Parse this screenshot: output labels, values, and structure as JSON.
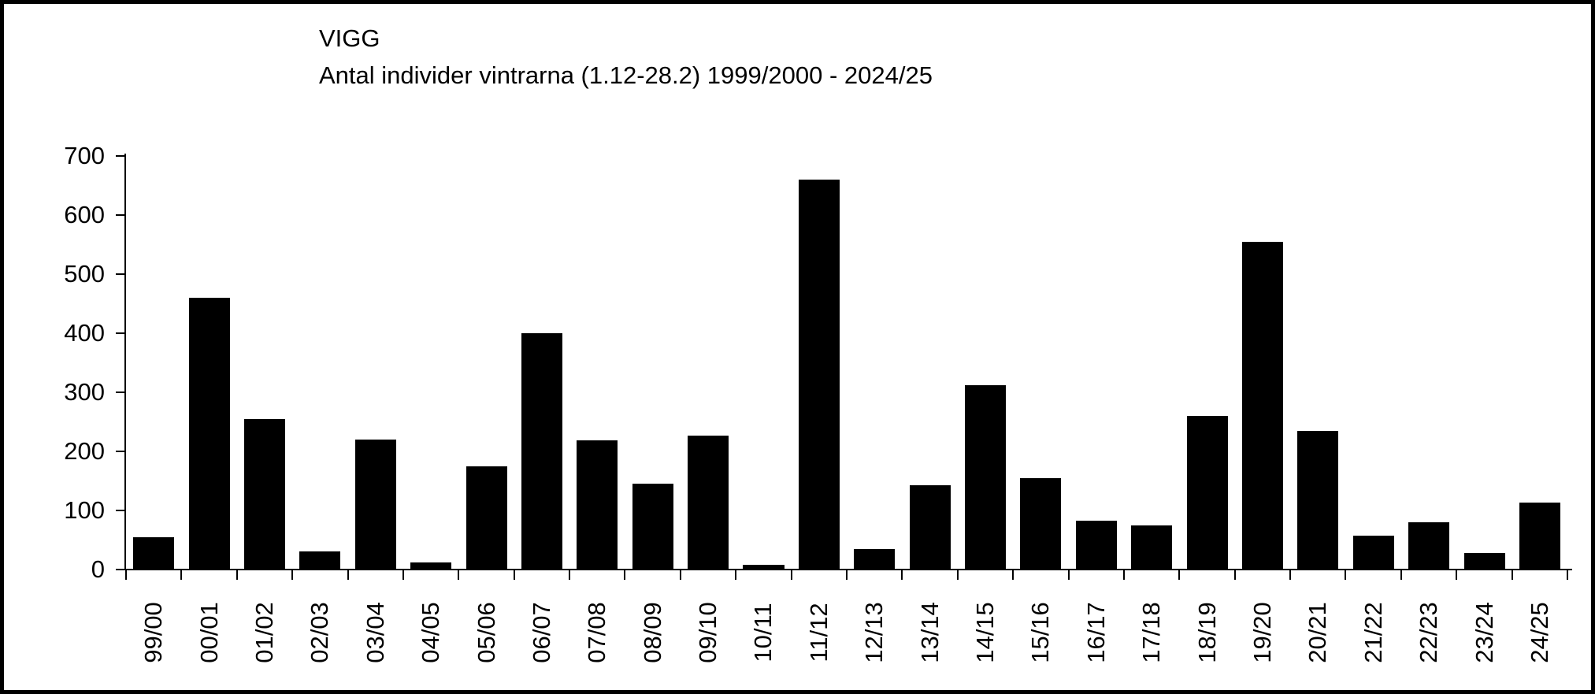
{
  "frame": {
    "background_color": "#ffffff",
    "border_color": "#000000"
  },
  "chart_data": {
    "type": "bar",
    "title": "VIGG",
    "subtitle": "Antal individer vintrarna (1.12-28.2) 1999/2000 - 2024/25",
    "categories": [
      "99/00",
      "00/01",
      "01/02",
      "02/03",
      "03/04",
      "04/05",
      "05/06",
      "06/07",
      "07/08",
      "08/09",
      "09/10",
      "10/11",
      "11/12",
      "12/13",
      "13/14",
      "14/15",
      "15/16",
      "16/17",
      "17/18",
      "18/19",
      "19/20",
      "20/21",
      "21/22",
      "22/23",
      "23/24",
      "24/25"
    ],
    "values": [
      55,
      460,
      255,
      30,
      220,
      12,
      175,
      400,
      218,
      145,
      227,
      8,
      660,
      35,
      142,
      312,
      155,
      82,
      75,
      260,
      555,
      235,
      57,
      80,
      28,
      113
    ],
    "bar_color": "#000000",
    "xlabel": "",
    "ylabel": "",
    "ylim": [
      0,
      700
    ],
    "yticks": [
      0,
      100,
      200,
      300,
      400,
      500,
      600,
      700
    ],
    "grid": false,
    "legend_position": "none",
    "x_tick_label_rotation_deg": 90
  }
}
